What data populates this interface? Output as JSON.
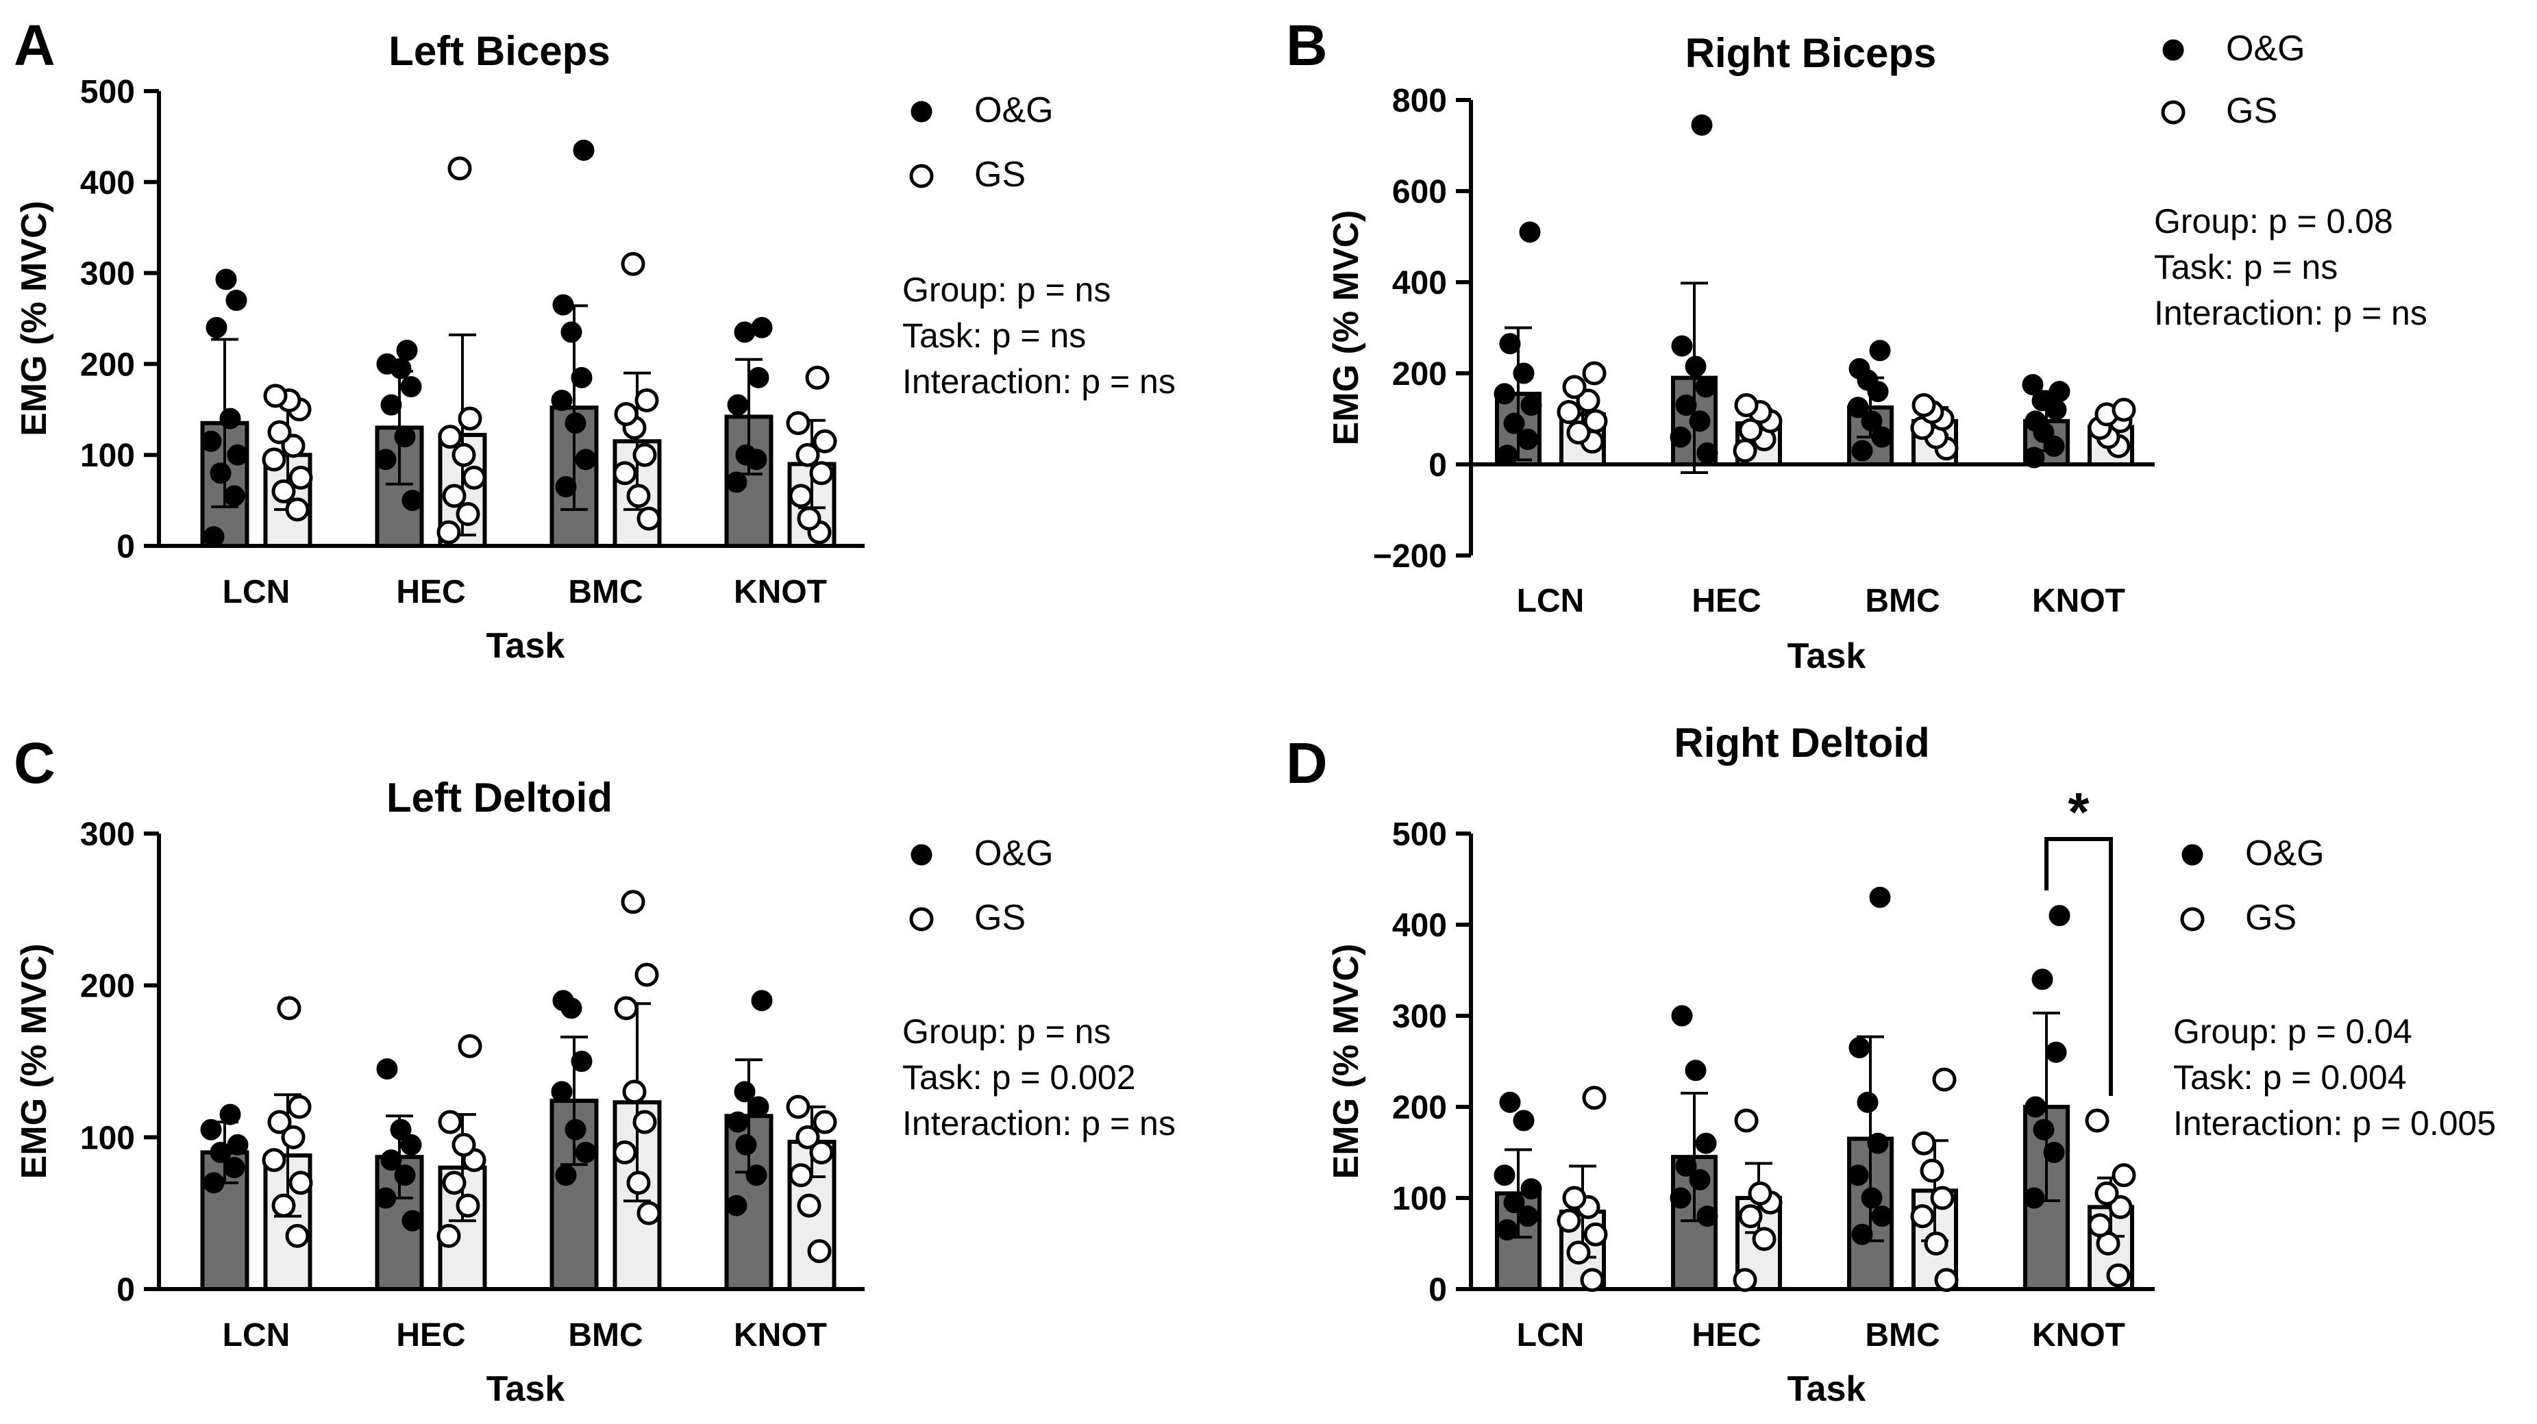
{
  "colors": {
    "og_bar": "#6e6e6e",
    "gs_bar": "#eeeeee",
    "ink": "#000000",
    "og_dot": "#000000",
    "gs_dot": "#ffffff"
  },
  "chart_data": [
    {
      "panel_letter": "A",
      "type": "bar",
      "title": "Left Biceps",
      "xlabel": "Task",
      "ylabel": "EMG (% MVC)",
      "ylim": [
        0,
        500
      ],
      "yticks": [
        0,
        100,
        200,
        300,
        400,
        500
      ],
      "ytick_labels": [
        "0",
        "100",
        "200",
        "300",
        "400",
        "500"
      ],
      "categories": [
        "LCN",
        "HEC",
        "BMC",
        "KNOT"
      ],
      "legend": [
        "O&G",
        "GS"
      ],
      "stats": [
        "Group: p = ns",
        "Task: p = ns",
        "Interaction: p = ns"
      ],
      "series": [
        {
          "name": "O&G",
          "values": [
            135,
            130,
            152,
            142
          ],
          "errors": [
            92,
            62,
            112,
            63
          ],
          "points": [
            [
              10,
              55,
              80,
              100,
              115,
              140,
              240,
              270,
              293
            ],
            [
              50,
              95,
              120,
              155,
              175,
              195,
              200,
              215
            ],
            [
              65,
              95,
              135,
              160,
              185,
              235,
              265,
              435
            ],
            [
              70,
              95,
              100,
              155,
              185,
              235,
              240
            ]
          ]
        },
        {
          "name": "GS",
          "values": [
            100,
            122,
            115,
            90
          ],
          "errors": [
            60,
            110,
            75,
            48
          ],
          "points": [
            [
              40,
              60,
              75,
              95,
              110,
              125,
              150,
              160,
              165
            ],
            [
              15,
              35,
              55,
              75,
              100,
              120,
              140,
              415
            ],
            [
              30,
              55,
              80,
              100,
              130,
              145,
              160,
              310
            ],
            [
              15,
              30,
              55,
              80,
              100,
              115,
              135,
              185
            ]
          ]
        }
      ]
    },
    {
      "panel_letter": "B",
      "type": "bar",
      "title": "Right Biceps",
      "xlabel": "Task",
      "ylabel": "EMG (% MVC)",
      "ylim": [
        -200,
        800
      ],
      "yticks": [
        -200,
        0,
        200,
        400,
        600,
        800
      ],
      "ytick_labels": [
        "−200",
        "0",
        "200",
        "400",
        "600",
        "800"
      ],
      "categories": [
        "LCN",
        "HEC",
        "BMC",
        "KNOT"
      ],
      "legend": [
        "O&G",
        "GS"
      ],
      "stats": [
        "Group: p = 0.08",
        "Task: p = ns",
        "Interaction: p = ns"
      ],
      "series": [
        {
          "name": "O&G",
          "values": [
            155,
            190,
            125,
            95
          ],
          "errors": [
            145,
            208,
            65,
            65
          ],
          "points": [
            [
              20,
              55,
              90,
              130,
              155,
              200,
              265,
              510
            ],
            [
              25,
              60,
              95,
              130,
              170,
              215,
              260,
              745
            ],
            [
              30,
              60,
              95,
              125,
              160,
              185,
              210,
              250
            ],
            [
              15,
              40,
              70,
              95,
              120,
              140,
              160,
              175
            ]
          ]
        },
        {
          "name": "GS",
          "values": [
            110,
            90,
            95,
            82
          ],
          "errors": [
            45,
            30,
            30,
            25
          ],
          "points": [
            [
              50,
              70,
              95,
              115,
              140,
              170,
              200
            ],
            [
              30,
              55,
              75,
              95,
              115,
              130
            ],
            [
              35,
              60,
              80,
              100,
              115,
              130
            ],
            [
              40,
              60,
              80,
              95,
              110,
              120
            ]
          ]
        }
      ]
    },
    {
      "panel_letter": "C",
      "type": "bar",
      "title": "Left Deltoid",
      "xlabel": "Task",
      "ylabel": "EMG (% MVC)",
      "ylim": [
        0,
        300
      ],
      "yticks": [
        0,
        100,
        200,
        300
      ],
      "ytick_labels": [
        "0",
        "100",
        "200",
        "300"
      ],
      "categories": [
        "LCN",
        "HEC",
        "BMC",
        "KNOT"
      ],
      "legend": [
        "O&G",
        "GS"
      ],
      "stats": [
        "Group: p = ns",
        "Task: p = 0.002",
        "Interaction: p = ns"
      ],
      "series": [
        {
          "name": "O&G",
          "values": [
            90,
            87,
            124,
            114
          ],
          "errors": [
            20,
            27,
            42,
            37
          ],
          "points": [
            [
              70,
              80,
              90,
              95,
              105,
              115
            ],
            [
              45,
              60,
              75,
              85,
              95,
              105,
              145
            ],
            [
              75,
              90,
              105,
              130,
              150,
              185,
              190
            ],
            [
              55,
              75,
              95,
              110,
              120,
              130,
              190
            ]
          ]
        },
        {
          "name": "GS",
          "values": [
            88,
            80,
            123,
            97
          ],
          "errors": [
            40,
            35,
            65,
            23
          ],
          "points": [
            [
              35,
              55,
              70,
              85,
              100,
              110,
              120,
              185
            ],
            [
              35,
              55,
              70,
              85,
              95,
              110,
              160
            ],
            [
              50,
              70,
              90,
              110,
              130,
              185,
              207,
              255
            ],
            [
              25,
              55,
              75,
              90,
              100,
              110,
              120
            ]
          ]
        }
      ]
    },
    {
      "panel_letter": "D",
      "type": "bar",
      "title": "Right Deltoid",
      "xlabel": "Task",
      "ylabel": "EMG (% MVC)",
      "ylim": [
        0,
        500
      ],
      "yticks": [
        0,
        100,
        200,
        300,
        400,
        500
      ],
      "ytick_labels": [
        "0",
        "100",
        "200",
        "300",
        "400",
        "500"
      ],
      "categories": [
        "LCN",
        "HEC",
        "BMC",
        "KNOT"
      ],
      "legend": [
        "O&G",
        "GS"
      ],
      "stats": [
        "Group: p = 0.04",
        "Task: p = 0.004",
        "Interaction: p = 0.005"
      ],
      "significance": {
        "label": "*",
        "category": "KNOT"
      },
      "series": [
        {
          "name": "O&G",
          "values": [
            105,
            145,
            165,
            200
          ],
          "errors": [
            48,
            70,
            112,
            103
          ],
          "points": [
            [
              65,
              80,
              95,
              110,
              125,
              185,
              205
            ],
            [
              80,
              100,
              120,
              135,
              160,
              240,
              300
            ],
            [
              60,
              80,
              100,
              125,
              160,
              205,
              265,
              430
            ],
            [
              100,
              150,
              175,
              200,
              260,
              340,
              410
            ]
          ]
        },
        {
          "name": "GS",
          "values": [
            85,
            100,
            108,
            90
          ],
          "errors": [
            50,
            38,
            55,
            32
          ],
          "points": [
            [
              10,
              40,
              60,
              75,
              90,
              100,
              210
            ],
            [
              10,
              55,
              80,
              95,
              105,
              185
            ],
            [
              10,
              50,
              80,
              100,
              130,
              160,
              230
            ],
            [
              15,
              50,
              70,
              90,
              105,
              125,
              185
            ]
          ]
        }
      ]
    }
  ]
}
